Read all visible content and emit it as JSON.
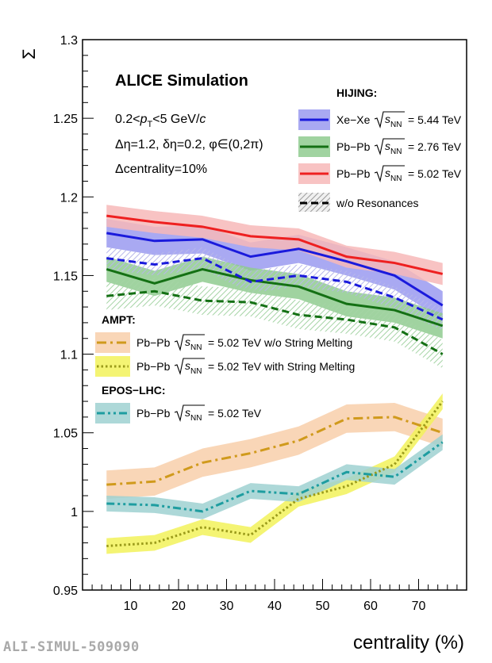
{
  "watermark": "ALI-SIMUL-509090",
  "chart_data": {
    "type": "line",
    "title": "ALICE Simulation",
    "xlabel": "centrality (%)",
    "ylabel": "Σ",
    "xlim": [
      0,
      80
    ],
    "ylim": [
      0.95,
      1.3
    ],
    "x_ticks": [
      10,
      20,
      30,
      40,
      50,
      60,
      70
    ],
    "y_ticks": [
      0.95,
      1,
      1.05,
      1.1,
      1.15,
      1.2,
      1.25,
      1.3
    ],
    "info": {
      "line1": "0.2<p_T<5 GeV/c",
      "pt_prefix": "0.2<",
      "pt_p": "p",
      "pt_sub": "T",
      "pt_suffix": "<5 GeV/",
      "pt_c": "c",
      "line2": "Δη=1.2, δη=0.2, φ∈(0,2π)",
      "line3": "Δcentrality=10%"
    },
    "legend_groups": {
      "hijing": "HIJING:",
      "ampt": "AMPT:",
      "epos": "EPOS−LHC:"
    },
    "x": [
      5,
      15,
      25,
      35,
      45,
      55,
      65,
      75
    ],
    "series": [
      {
        "name": "Xe−Xe √sNN = 5.44 TeV",
        "pre": "Xe−Xe",
        "post": "= 5.44 TeV",
        "group": "hijing",
        "color": "#1a1adc",
        "band": "#9a9af0",
        "style": "solid",
        "values": [
          1.177,
          1.172,
          1.173,
          1.162,
          1.167,
          1.159,
          1.15,
          1.131
        ],
        "err": 0.009
      },
      {
        "name": "Pb−Pb √sNN = 2.76 TeV",
        "pre": "Pb−Pb",
        "post": "= 2.76 TeV",
        "group": "hijing",
        "color": "#147014",
        "band": "#8fcb8f",
        "style": "solid",
        "values": [
          1.154,
          1.145,
          1.154,
          1.147,
          1.143,
          1.132,
          1.128,
          1.118
        ],
        "err": 0.008
      },
      {
        "name": "Pb−Pb √sNN = 5.02 TeV",
        "pre": "Pb−Pb",
        "post": "= 5.02 TeV",
        "group": "hijing",
        "color": "#ee2020",
        "band": "#f7b9b9",
        "style": "solid",
        "values": [
          1.188,
          1.184,
          1.181,
          1.175,
          1.173,
          1.162,
          1.158,
          1.151
        ],
        "err": 0.007
      },
      {
        "name": "Xe−Xe w/o Resonances",
        "group": "hijing-res",
        "color": "#1a1adc",
        "style": "dashed",
        "hatch": true,
        "values": [
          1.161,
          1.157,
          1.161,
          1.146,
          1.15,
          1.146,
          1.136,
          1.122
        ],
        "err": 0.007
      },
      {
        "name": "Pb−Pb 2.76 TeV w/o Resonances",
        "group": "hijing-res",
        "color": "#147014",
        "style": "dashed",
        "hatch": true,
        "values": [
          1.137,
          1.14,
          1.134,
          1.133,
          1.125,
          1.122,
          1.117,
          1.1
        ],
        "err": 0.009
      },
      {
        "name": "Pb−Pb √sNN = 5.02 TeV w/o String Melting",
        "pre": "Pb−Pb",
        "post": "= 5.02 TeV w/o String Melting",
        "group": "ampt",
        "color": "#d09a1c",
        "band": "#f8cfaa",
        "style": "dashdot",
        "values": [
          1.017,
          1.019,
          1.031,
          1.037,
          1.045,
          1.059,
          1.06,
          1.05
        ],
        "err": 0.009
      },
      {
        "name": "Pb−Pb √sNN = 5.02 TeV with String Melting",
        "pre": "Pb−Pb",
        "post": "= 5.02 TeV with String Melting",
        "group": "ampt",
        "color": "#9a9a1a",
        "band": "#f2f25a",
        "style": "dotted",
        "values": [
          0.978,
          0.98,
          0.99,
          0.985,
          1.008,
          1.016,
          1.03,
          1.07
        ],
        "err": 0.005
      },
      {
        "name": "Pb−Pb √sNN = 5.02 TeV",
        "pre": "Pb−Pb",
        "post": "= 5.02 TeV",
        "group": "epos",
        "color": "#1e9da0",
        "band": "#9fd1d1",
        "style": "dashdotdot",
        "values": [
          1.005,
          1.004,
          1.0,
          1.013,
          1.011,
          1.025,
          1.022,
          1.044
        ],
        "err": 0.005
      }
    ],
    "resonance_legend": "w/o Resonances",
    "sqrt_label": "s",
    "sqrt_sub": "NN"
  }
}
